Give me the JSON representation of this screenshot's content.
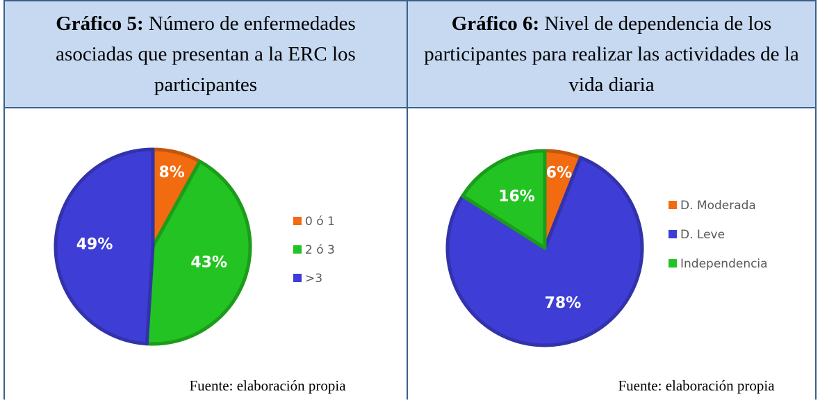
{
  "chart_data": [
    {
      "type": "pie",
      "title_label": "Gráfico 5:",
      "title": "Número de enfermedades asociadas que presentan a la ERC los participantes",
      "categories": [
        "0 ó 1",
        "2 ó 3",
        ">3"
      ],
      "values": [
        8,
        43,
        49
      ],
      "value_labels": [
        "8%",
        "43%",
        "49%"
      ],
      "colors": [
        "#f26b10",
        "#22c322",
        "#3e3ed6"
      ],
      "legend": "right",
      "source": "Fuente: elaboración propia"
    },
    {
      "type": "pie",
      "title_label": "Gráfico 6:",
      "title": "Nivel de dependencia de los participantes para realizar las actividades de la vida diaria",
      "categories": [
        "D. Moderada",
        "D. Leve",
        "Independencia"
      ],
      "values": [
        6,
        78,
        16
      ],
      "value_labels": [
        "6%",
        "78%",
        "16%"
      ],
      "colors": [
        "#f26b10",
        "#3e3ed6",
        "#22c322"
      ],
      "legend": "right",
      "source": "Fuente: elaboración propia"
    }
  ]
}
